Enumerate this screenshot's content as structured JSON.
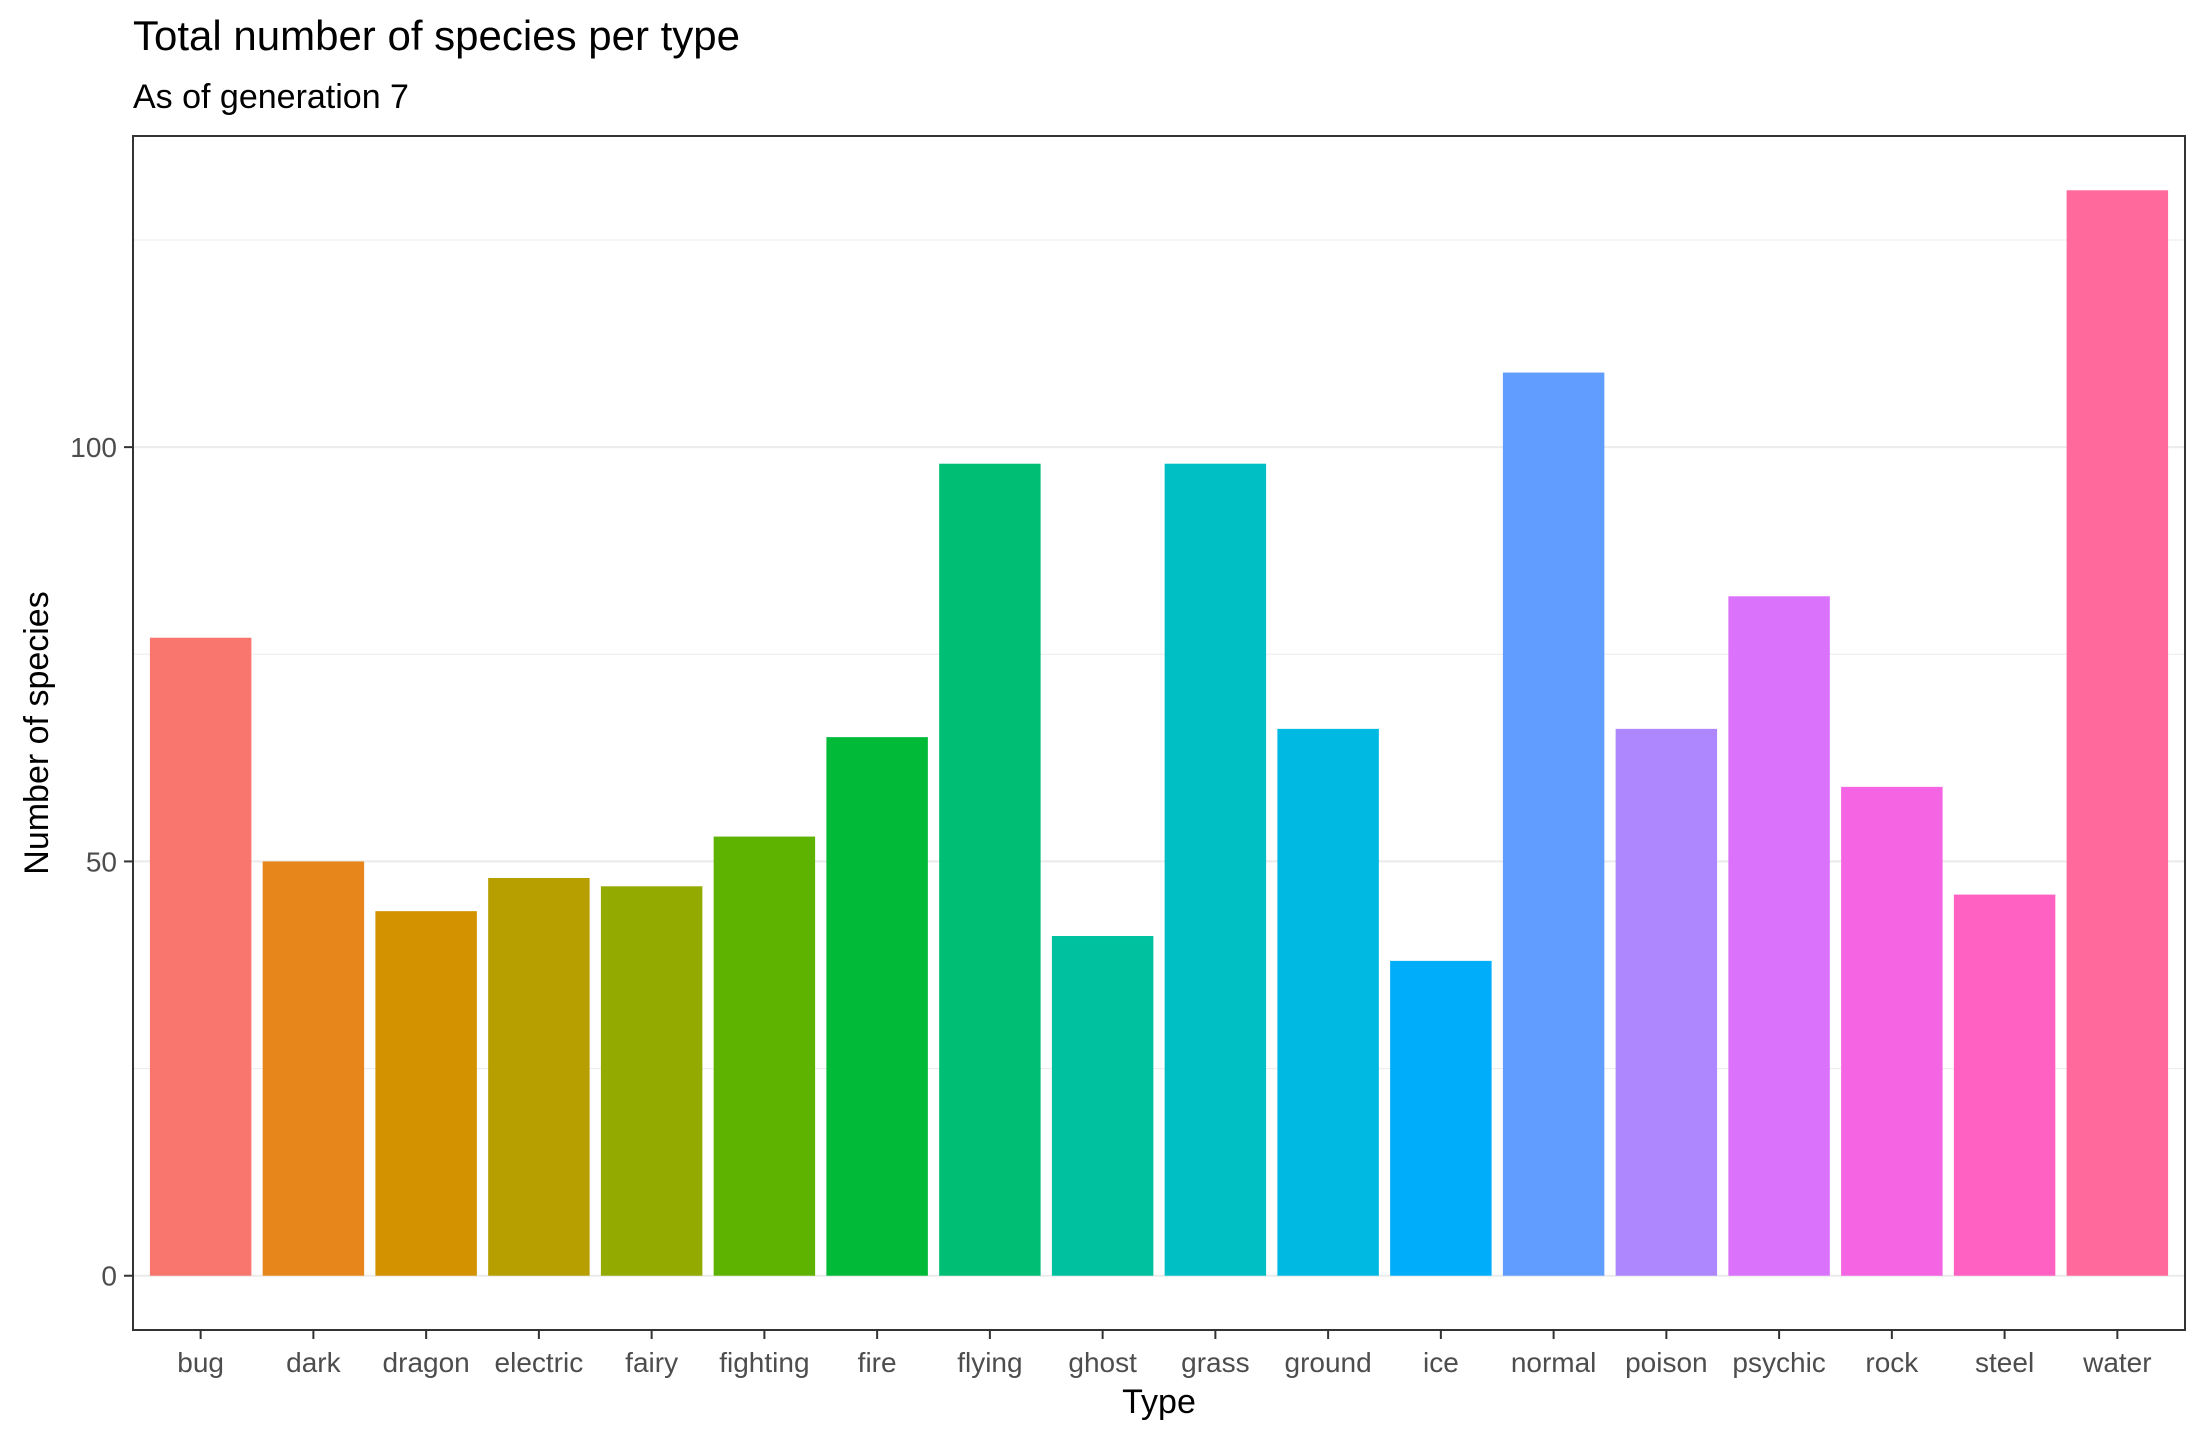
{
  "chart_data": {
    "type": "bar",
    "title": "Total number of species per type",
    "subtitle": "As of generation 7",
    "xlabel": "Type",
    "ylabel": "Number of species",
    "categories": [
      "bug",
      "dark",
      "dragon",
      "electric",
      "fairy",
      "fighting",
      "fire",
      "flying",
      "ghost",
      "grass",
      "ground",
      "ice",
      "normal",
      "poison",
      "psychic",
      "rock",
      "steel",
      "water"
    ],
    "values": [
      77,
      50,
      44,
      48,
      47,
      53,
      65,
      98,
      41,
      98,
      66,
      38,
      109,
      66,
      82,
      59,
      46,
      131
    ],
    "colors": [
      "#F8766D",
      "#E7861B",
      "#D39200",
      "#B79F00",
      "#93AA00",
      "#5EB300",
      "#00BA38",
      "#00BF74",
      "#00C19F",
      "#00BFC4",
      "#00B9E3",
      "#00ADFA",
      "#619CFF",
      "#AE87FF",
      "#DB72FB",
      "#F564E3",
      "#FF61C3",
      "#FF699C"
    ],
    "ylim": [
      -6.55,
      137.55
    ],
    "y_ticks": [
      0,
      50,
      100
    ],
    "grid": true,
    "legend": "none"
  }
}
